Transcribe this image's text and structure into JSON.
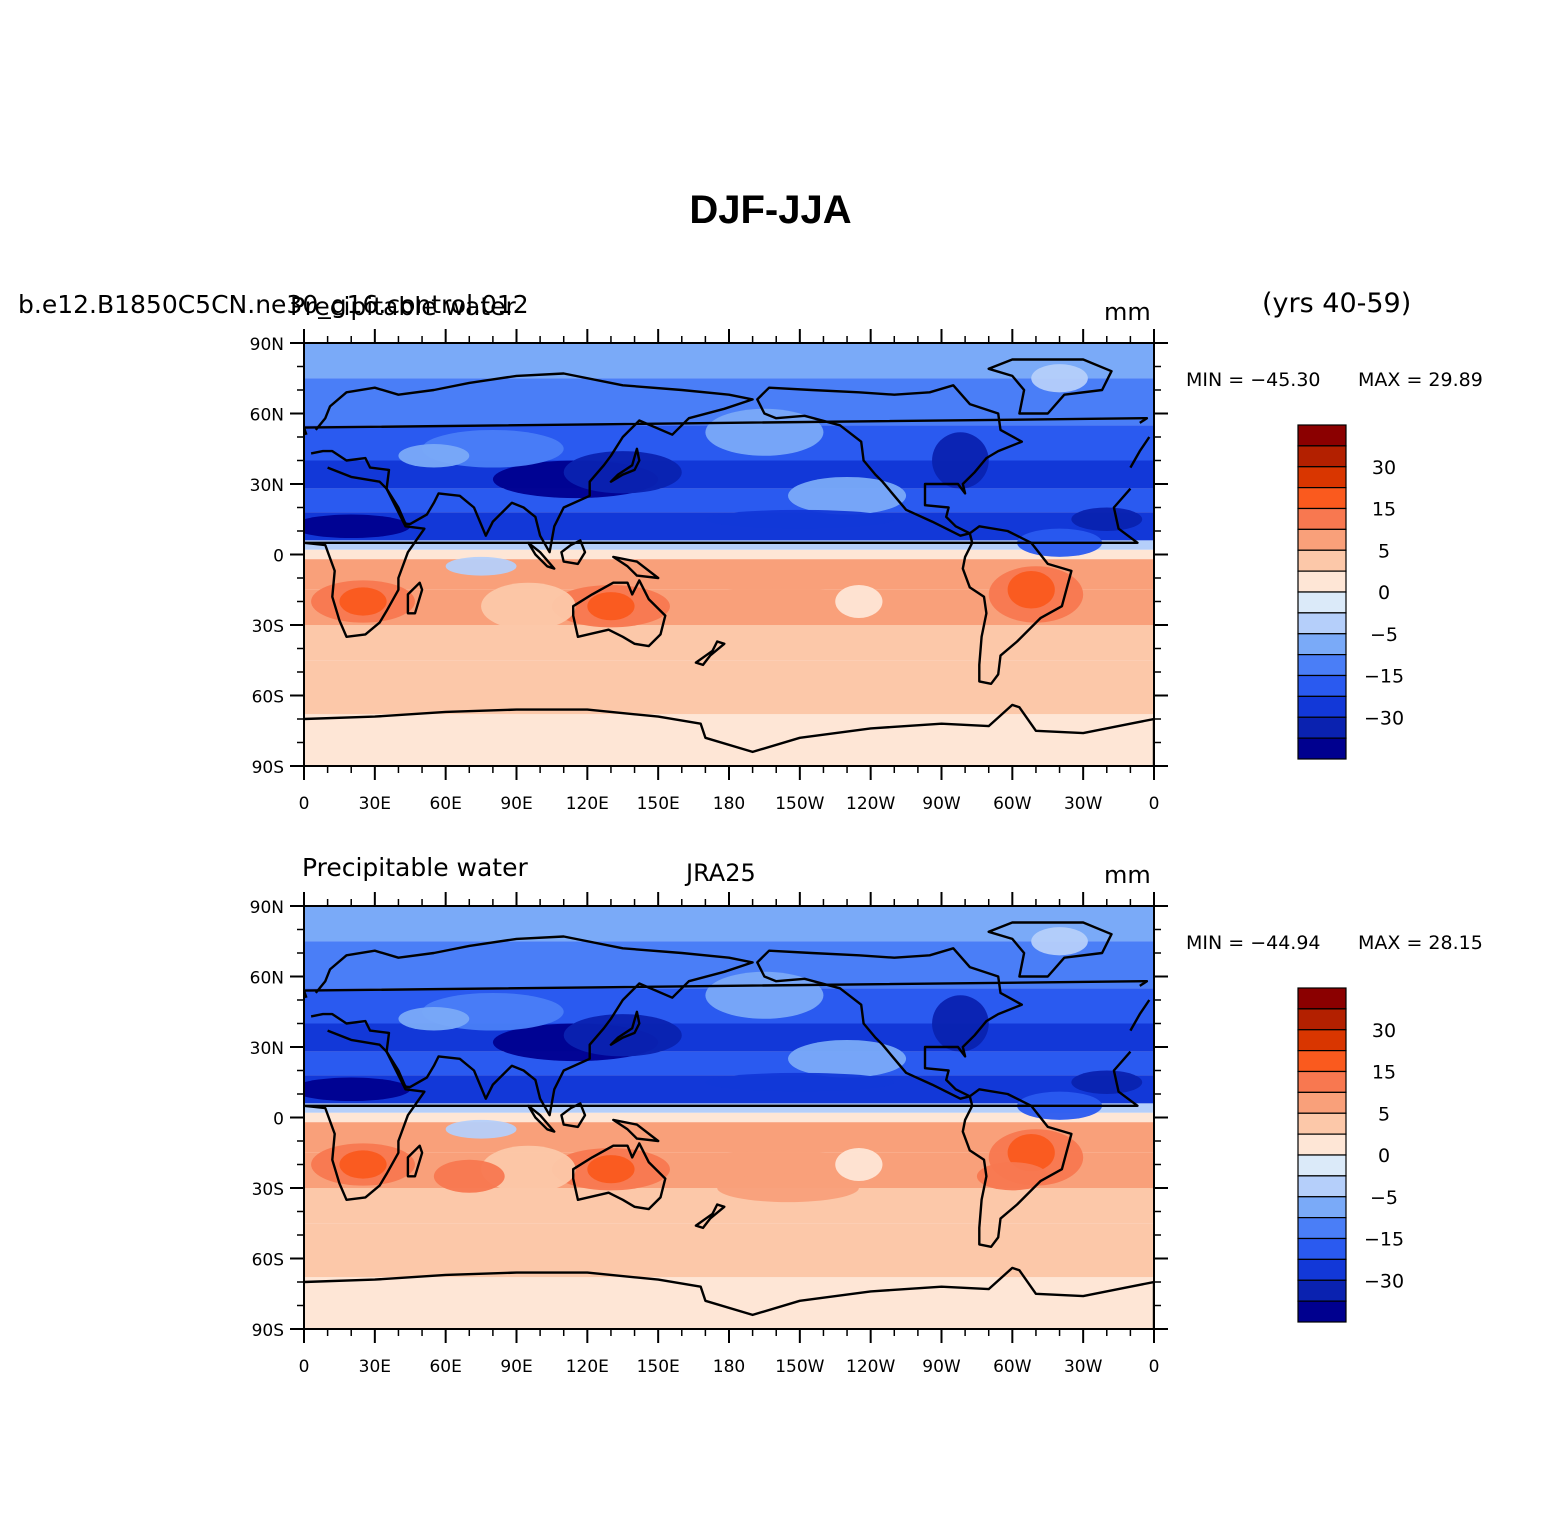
{
  "figure": {
    "title": "DJF-JJA"
  },
  "map_axes": {
    "lat_labels": [
      "90N",
      "60N",
      "30N",
      "0",
      "30S",
      "60S",
      "90S"
    ],
    "lon_labels": [
      "0",
      "30E",
      "60E",
      "90E",
      "120E",
      "150E",
      "180",
      "150W",
      "120W",
      "90W",
      "60W",
      "30W",
      "0"
    ]
  },
  "colorbar": {
    "labels": [
      "30",
      "15",
      "5",
      "0",
      "-5",
      "-15",
      "-30"
    ],
    "colors": [
      "#8b0000",
      "#b32000",
      "#d93600",
      "#fa5a1e",
      "#f87850",
      "#f9a07a",
      "#fcc8a9",
      "#fee6d6",
      "#dbeaf9",
      "#b5cffa",
      "#7aaaf8",
      "#4a7ef7",
      "#2a5af0",
      "#1238d8",
      "#0a22b0",
      "#00008f"
    ]
  },
  "panels": [
    {
      "left_label": "b.e12.B1850C5CN.ne30_g16.control.012",
      "center_label": "Precipitable water",
      "units": "mm",
      "extra_label": "(yrs 40-59)",
      "min_label": "MIN = -45.30",
      "max_label": "MAX =  29.89"
    },
    {
      "left_label": "Precipitable water",
      "center_label": "JRA25",
      "units": "mm",
      "extra_label": "",
      "min_label": "MIN = -44.94",
      "max_label": "MAX =  28.15"
    }
  ]
}
